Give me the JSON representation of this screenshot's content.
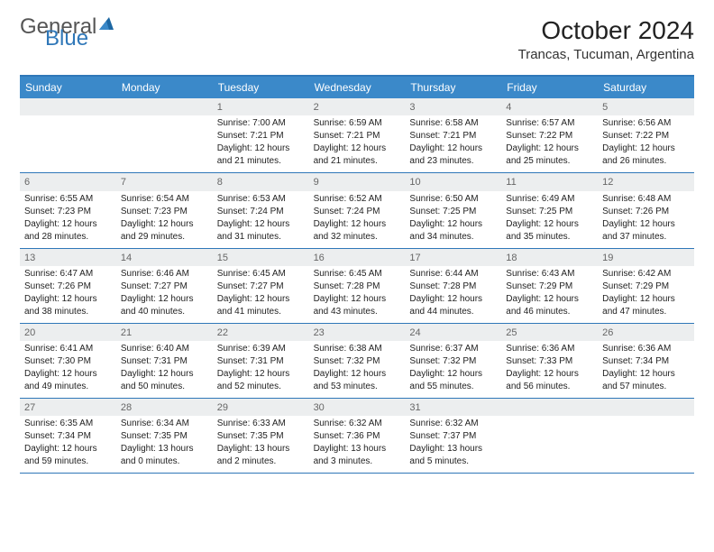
{
  "brand": {
    "word1": "General",
    "word2": "Blue"
  },
  "title": "October 2024",
  "location": "Trancas, Tucuman, Argentina",
  "colors": {
    "header_bar": "#3b89c9",
    "rule": "#2f77b8",
    "shade": "#eceeef",
    "text": "#222222",
    "muted": "#666666"
  },
  "weekdays": [
    "Sunday",
    "Monday",
    "Tuesday",
    "Wednesday",
    "Thursday",
    "Friday",
    "Saturday"
  ],
  "weeks": [
    [
      null,
      null,
      {
        "n": "1",
        "sunrise": "Sunrise: 7:00 AM",
        "sunset": "Sunset: 7:21 PM",
        "d1": "Daylight: 12 hours",
        "d2": "and 21 minutes."
      },
      {
        "n": "2",
        "sunrise": "Sunrise: 6:59 AM",
        "sunset": "Sunset: 7:21 PM",
        "d1": "Daylight: 12 hours",
        "d2": "and 21 minutes."
      },
      {
        "n": "3",
        "sunrise": "Sunrise: 6:58 AM",
        "sunset": "Sunset: 7:21 PM",
        "d1": "Daylight: 12 hours",
        "d2": "and 23 minutes."
      },
      {
        "n": "4",
        "sunrise": "Sunrise: 6:57 AM",
        "sunset": "Sunset: 7:22 PM",
        "d1": "Daylight: 12 hours",
        "d2": "and 25 minutes."
      },
      {
        "n": "5",
        "sunrise": "Sunrise: 6:56 AM",
        "sunset": "Sunset: 7:22 PM",
        "d1": "Daylight: 12 hours",
        "d2": "and 26 minutes."
      }
    ],
    [
      {
        "n": "6",
        "sunrise": "Sunrise: 6:55 AM",
        "sunset": "Sunset: 7:23 PM",
        "d1": "Daylight: 12 hours",
        "d2": "and 28 minutes."
      },
      {
        "n": "7",
        "sunrise": "Sunrise: 6:54 AM",
        "sunset": "Sunset: 7:23 PM",
        "d1": "Daylight: 12 hours",
        "d2": "and 29 minutes."
      },
      {
        "n": "8",
        "sunrise": "Sunrise: 6:53 AM",
        "sunset": "Sunset: 7:24 PM",
        "d1": "Daylight: 12 hours",
        "d2": "and 31 minutes."
      },
      {
        "n": "9",
        "sunrise": "Sunrise: 6:52 AM",
        "sunset": "Sunset: 7:24 PM",
        "d1": "Daylight: 12 hours",
        "d2": "and 32 minutes."
      },
      {
        "n": "10",
        "sunrise": "Sunrise: 6:50 AM",
        "sunset": "Sunset: 7:25 PM",
        "d1": "Daylight: 12 hours",
        "d2": "and 34 minutes."
      },
      {
        "n": "11",
        "sunrise": "Sunrise: 6:49 AM",
        "sunset": "Sunset: 7:25 PM",
        "d1": "Daylight: 12 hours",
        "d2": "and 35 minutes."
      },
      {
        "n": "12",
        "sunrise": "Sunrise: 6:48 AM",
        "sunset": "Sunset: 7:26 PM",
        "d1": "Daylight: 12 hours",
        "d2": "and 37 minutes."
      }
    ],
    [
      {
        "n": "13",
        "sunrise": "Sunrise: 6:47 AM",
        "sunset": "Sunset: 7:26 PM",
        "d1": "Daylight: 12 hours",
        "d2": "and 38 minutes."
      },
      {
        "n": "14",
        "sunrise": "Sunrise: 6:46 AM",
        "sunset": "Sunset: 7:27 PM",
        "d1": "Daylight: 12 hours",
        "d2": "and 40 minutes."
      },
      {
        "n": "15",
        "sunrise": "Sunrise: 6:45 AM",
        "sunset": "Sunset: 7:27 PM",
        "d1": "Daylight: 12 hours",
        "d2": "and 41 minutes."
      },
      {
        "n": "16",
        "sunrise": "Sunrise: 6:45 AM",
        "sunset": "Sunset: 7:28 PM",
        "d1": "Daylight: 12 hours",
        "d2": "and 43 minutes."
      },
      {
        "n": "17",
        "sunrise": "Sunrise: 6:44 AM",
        "sunset": "Sunset: 7:28 PM",
        "d1": "Daylight: 12 hours",
        "d2": "and 44 minutes."
      },
      {
        "n": "18",
        "sunrise": "Sunrise: 6:43 AM",
        "sunset": "Sunset: 7:29 PM",
        "d1": "Daylight: 12 hours",
        "d2": "and 46 minutes."
      },
      {
        "n": "19",
        "sunrise": "Sunrise: 6:42 AM",
        "sunset": "Sunset: 7:29 PM",
        "d1": "Daylight: 12 hours",
        "d2": "and 47 minutes."
      }
    ],
    [
      {
        "n": "20",
        "sunrise": "Sunrise: 6:41 AM",
        "sunset": "Sunset: 7:30 PM",
        "d1": "Daylight: 12 hours",
        "d2": "and 49 minutes."
      },
      {
        "n": "21",
        "sunrise": "Sunrise: 6:40 AM",
        "sunset": "Sunset: 7:31 PM",
        "d1": "Daylight: 12 hours",
        "d2": "and 50 minutes."
      },
      {
        "n": "22",
        "sunrise": "Sunrise: 6:39 AM",
        "sunset": "Sunset: 7:31 PM",
        "d1": "Daylight: 12 hours",
        "d2": "and 52 minutes."
      },
      {
        "n": "23",
        "sunrise": "Sunrise: 6:38 AM",
        "sunset": "Sunset: 7:32 PM",
        "d1": "Daylight: 12 hours",
        "d2": "and 53 minutes."
      },
      {
        "n": "24",
        "sunrise": "Sunrise: 6:37 AM",
        "sunset": "Sunset: 7:32 PM",
        "d1": "Daylight: 12 hours",
        "d2": "and 55 minutes."
      },
      {
        "n": "25",
        "sunrise": "Sunrise: 6:36 AM",
        "sunset": "Sunset: 7:33 PM",
        "d1": "Daylight: 12 hours",
        "d2": "and 56 minutes."
      },
      {
        "n": "26",
        "sunrise": "Sunrise: 6:36 AM",
        "sunset": "Sunset: 7:34 PM",
        "d1": "Daylight: 12 hours",
        "d2": "and 57 minutes."
      }
    ],
    [
      {
        "n": "27",
        "sunrise": "Sunrise: 6:35 AM",
        "sunset": "Sunset: 7:34 PM",
        "d1": "Daylight: 12 hours",
        "d2": "and 59 minutes."
      },
      {
        "n": "28",
        "sunrise": "Sunrise: 6:34 AM",
        "sunset": "Sunset: 7:35 PM",
        "d1": "Daylight: 13 hours",
        "d2": "and 0 minutes."
      },
      {
        "n": "29",
        "sunrise": "Sunrise: 6:33 AM",
        "sunset": "Sunset: 7:35 PM",
        "d1": "Daylight: 13 hours",
        "d2": "and 2 minutes."
      },
      {
        "n": "30",
        "sunrise": "Sunrise: 6:32 AM",
        "sunset": "Sunset: 7:36 PM",
        "d1": "Daylight: 13 hours",
        "d2": "and 3 minutes."
      },
      {
        "n": "31",
        "sunrise": "Sunrise: 6:32 AM",
        "sunset": "Sunset: 7:37 PM",
        "d1": "Daylight: 13 hours",
        "d2": "and 5 minutes."
      },
      null,
      null
    ]
  ],
  "shaded_row_start": true
}
